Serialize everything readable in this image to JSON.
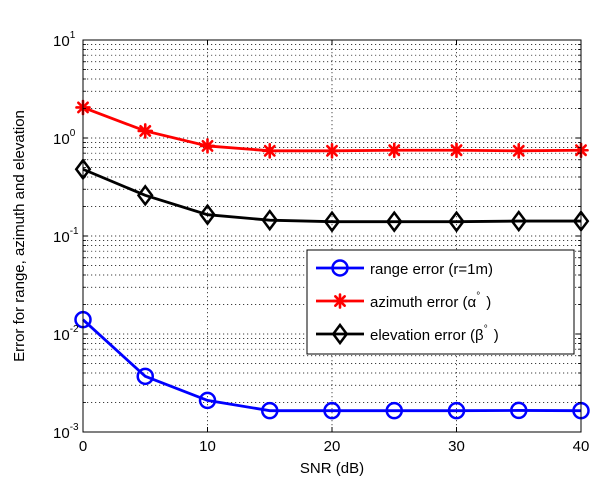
{
  "chart_data": {
    "type": "line",
    "xlabel": "SNR (dB)",
    "ylabel": "Error for range, azimuth and elevation",
    "xlim": [
      0,
      40
    ],
    "ylim": [
      0.001,
      10
    ],
    "yscale": "log",
    "grid": "dotted (major and minor)",
    "legend_position": "center-right",
    "x_ticks": [
      "0",
      "10",
      "20",
      "30",
      "40"
    ],
    "y_ticks": [
      {
        "base": "10",
        "exp": "1"
      },
      {
        "base": "10",
        "exp": "0"
      },
      {
        "base": "10",
        "exp": "-1"
      },
      {
        "base": "10",
        "exp": "-2"
      },
      {
        "base": "10",
        "exp": "-3"
      }
    ],
    "x": [
      0,
      5,
      10,
      15,
      20,
      25,
      30,
      35,
      40
    ],
    "series": [
      {
        "name": "range error (r=1m)",
        "color": "#0000ff",
        "marker": "circle",
        "values": [
          0.014,
          0.0037,
          0.0021,
          0.00165,
          0.00165,
          0.00165,
          0.00165,
          0.00166,
          0.00165
        ]
      },
      {
        "name": "azimuth error (α°)",
        "label_main": "azimuth error (",
        "label_sym": "α",
        "label_tail": ")",
        "color": "#ff0000",
        "marker": "star",
        "values": [
          2.05,
          1.18,
          0.83,
          0.74,
          0.74,
          0.75,
          0.75,
          0.74,
          0.75
        ]
      },
      {
        "name": "elevation error (β°)",
        "label_main": "elevation error (",
        "label_sym": "β",
        "label_tail": ")",
        "color": "#000000",
        "marker": "diamond",
        "values": [
          0.48,
          0.26,
          0.165,
          0.145,
          0.14,
          0.14,
          0.14,
          0.142,
          0.142
        ]
      }
    ]
  }
}
